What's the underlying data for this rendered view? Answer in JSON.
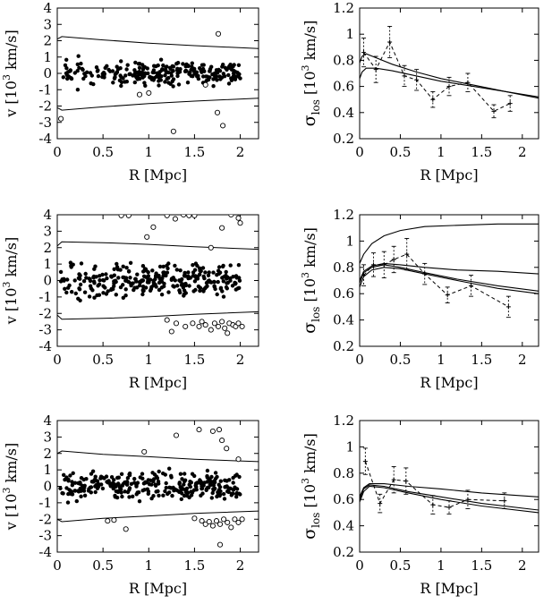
{
  "chart_data": [
    {
      "type": "scatter",
      "panel": "top-left",
      "xlabel": "R [Mpc]",
      "ylabel": "v [10³ km/s]",
      "xlim": [
        0,
        2.2
      ],
      "ylim": [
        -4,
        4
      ],
      "xticks": [
        "0",
        "0.5",
        "1",
        "1.5",
        "2"
      ],
      "yticks": [
        "-4",
        "-3",
        "-2",
        "-1",
        "0",
        "1",
        "2",
        "3",
        "4"
      ],
      "envelope": {
        "upper": [
          [
            0.0,
            2.1
          ],
          [
            0.05,
            2.25
          ],
          [
            0.5,
            2.05
          ],
          [
            1.0,
            1.85
          ],
          [
            1.5,
            1.7
          ],
          [
            2.2,
            1.52
          ]
        ],
        "lower": [
          [
            0.0,
            -2.1
          ],
          [
            0.05,
            -2.25
          ],
          [
            0.5,
            -2.05
          ],
          [
            1.0,
            -1.85
          ],
          [
            1.5,
            -1.7
          ],
          [
            2.2,
            -1.52
          ]
        ]
      },
      "members_seed": 11,
      "members_count": 260,
      "members_spread": 0.55,
      "interlopers": [
        [
          0.04,
          -2.78
        ],
        [
          0.9,
          -1.3
        ],
        [
          1.0,
          -1.2
        ],
        [
          1.27,
          -3.55
        ],
        [
          1.62,
          -0.7
        ],
        [
          1.75,
          -2.4
        ],
        [
          1.76,
          2.42
        ],
        [
          1.81,
          -3.2
        ]
      ]
    },
    {
      "type": "line",
      "panel": "top-right",
      "xlabel": "R [Mpc]",
      "ylabel": "σlos [10³ km/s]",
      "xlim": [
        0,
        2.2
      ],
      "ylim": [
        0.2,
        1.2
      ],
      "xticks": [
        "0",
        "0.5",
        "1",
        "1.5",
        "2"
      ],
      "yticks": [
        "0.2",
        "0.4",
        "0.6",
        "0.8",
        "1",
        "1.2"
      ],
      "data": {
        "x": [
          0.05,
          0.2,
          0.37,
          0.55,
          0.7,
          0.9,
          1.1,
          1.33,
          1.65,
          1.85
        ],
        "y": [
          0.86,
          0.73,
          0.94,
          0.68,
          0.65,
          0.5,
          0.6,
          0.63,
          0.41,
          0.47
        ],
        "err": [
          0.11,
          0.1,
          0.12,
          0.08,
          0.08,
          0.06,
          0.07,
          0.07,
          0.05,
          0.06
        ]
      },
      "models": [
        {
          "x": [
            0.0,
            0.03,
            0.08,
            0.2,
            0.4,
            0.7,
            1.0,
            1.4,
            1.8,
            2.2
          ],
          "y": [
            0.78,
            0.83,
            0.85,
            0.82,
            0.77,
            0.71,
            0.66,
            0.61,
            0.56,
            0.51
          ]
        },
        {
          "x": [
            0.0,
            0.03,
            0.08,
            0.2,
            0.4,
            0.7,
            1.0,
            1.4,
            1.8,
            2.2
          ],
          "y": [
            0.66,
            0.71,
            0.74,
            0.74,
            0.72,
            0.68,
            0.64,
            0.6,
            0.56,
            0.52
          ]
        }
      ]
    },
    {
      "type": "scatter",
      "panel": "middle-left",
      "xlabel": "R [Mpc]",
      "ylabel": "v [10³ km/s]",
      "xlim": [
        0,
        2.2
      ],
      "ylim": [
        -4,
        4
      ],
      "xticks": [
        "0",
        "0.5",
        "1",
        "1.5",
        "2"
      ],
      "yticks": [
        "-4",
        "-3",
        "-2",
        "-1",
        "0",
        "1",
        "2",
        "3",
        "4"
      ],
      "envelope": {
        "upper": [
          [
            0.0,
            2.1
          ],
          [
            0.05,
            2.35
          ],
          [
            0.5,
            2.3
          ],
          [
            1.0,
            2.2
          ],
          [
            1.5,
            2.05
          ],
          [
            2.2,
            1.9
          ]
        ],
        "lower": [
          [
            0.0,
            -2.1
          ],
          [
            0.05,
            -2.35
          ],
          [
            0.5,
            -2.3
          ],
          [
            1.0,
            -2.2
          ],
          [
            1.5,
            -2.05
          ],
          [
            2.2,
            -1.9
          ]
        ]
      },
      "members_seed": 23,
      "members_count": 300,
      "members_spread": 0.8,
      "interlopers": [
        [
          0.7,
          3.95
        ],
        [
          0.78,
          3.95
        ],
        [
          0.98,
          2.65
        ],
        [
          1.05,
          3.25
        ],
        [
          1.2,
          3.95
        ],
        [
          1.29,
          3.75
        ],
        [
          1.38,
          4.0
        ],
        [
          1.44,
          3.95
        ],
        [
          1.5,
          3.95
        ],
        [
          1.68,
          2.0
        ],
        [
          1.9,
          4.0
        ],
        [
          1.98,
          3.8
        ],
        [
          2.0,
          3.5
        ],
        [
          1.8,
          3.2
        ],
        [
          1.2,
          -2.4
        ],
        [
          1.3,
          -2.6
        ],
        [
          1.25,
          -3.1
        ],
        [
          1.4,
          -2.8
        ],
        [
          1.48,
          -2.6
        ],
        [
          1.55,
          -2.8
        ],
        [
          1.58,
          -2.5
        ],
        [
          1.62,
          -2.7
        ],
        [
          1.68,
          -3.0
        ],
        [
          1.72,
          -2.6
        ],
        [
          1.76,
          -2.8
        ],
        [
          1.8,
          -2.5
        ],
        [
          1.83,
          -2.9
        ],
        [
          1.86,
          -3.2
        ],
        [
          1.88,
          -2.6
        ],
        [
          1.92,
          -2.7
        ],
        [
          1.95,
          -2.8
        ],
        [
          1.98,
          -2.6
        ],
        [
          2.02,
          -2.8
        ]
      ]
    },
    {
      "type": "line",
      "panel": "middle-right",
      "xlabel": "R [Mpc]",
      "ylabel": "σlos [10³ km/s]",
      "xlim": [
        0,
        2.2
      ],
      "ylim": [
        0.2,
        1.2
      ],
      "xticks": [
        "0",
        "0.5",
        "1",
        "1.5",
        "2"
      ],
      "yticks": [
        "0.2",
        "0.4",
        "0.6",
        "0.8",
        "1",
        "1.2"
      ],
      "data": {
        "x": [
          0.05,
          0.17,
          0.3,
          0.42,
          0.58,
          0.8,
          1.08,
          1.37,
          1.83
        ],
        "y": [
          0.74,
          0.82,
          0.82,
          0.86,
          0.9,
          0.75,
          0.59,
          0.66,
          0.5
        ],
        "err": [
          0.08,
          0.09,
          0.1,
          0.1,
          0.12,
          0.08,
          0.06,
          0.08,
          0.08
        ]
      },
      "models": [
        {
          "x": [
            0.0,
            0.05,
            0.15,
            0.3,
            0.5,
            0.8,
            1.2,
            1.7,
            2.2
          ],
          "y": [
            0.83,
            0.9,
            0.98,
            1.04,
            1.08,
            1.11,
            1.12,
            1.13,
            1.13
          ]
        },
        {
          "x": [
            0.0,
            0.05,
            0.15,
            0.3,
            0.5,
            0.8,
            1.2,
            1.7,
            2.2
          ],
          "y": [
            0.7,
            0.77,
            0.81,
            0.83,
            0.82,
            0.8,
            0.78,
            0.77,
            0.75
          ]
        },
        {
          "x": [
            0.0,
            0.05,
            0.15,
            0.3,
            0.5,
            0.8,
            1.2,
            1.7,
            2.2
          ],
          "y": [
            0.68,
            0.76,
            0.8,
            0.82,
            0.8,
            0.76,
            0.71,
            0.66,
            0.62
          ]
        },
        {
          "x": [
            0.0,
            0.05,
            0.15,
            0.3,
            0.5,
            0.8,
            1.2,
            1.7,
            2.2
          ],
          "y": [
            0.65,
            0.73,
            0.78,
            0.8,
            0.79,
            0.75,
            0.7,
            0.64,
            0.6
          ]
        }
      ]
    },
    {
      "type": "scatter",
      "panel": "bottom-left",
      "xlabel": "R [Mpc]",
      "ylabel": "v [10³ km/s]",
      "xlim": [
        0,
        2.2
      ],
      "ylim": [
        -4,
        4
      ],
      "xticks": [
        "0",
        "0.5",
        "1",
        "1.5",
        "2"
      ],
      "yticks": [
        "-4",
        "-3",
        "-2",
        "-1",
        "0",
        "1",
        "2",
        "3",
        "4"
      ],
      "envelope": {
        "upper": [
          [
            0.0,
            2.0
          ],
          [
            0.05,
            2.15
          ],
          [
            0.5,
            1.95
          ],
          [
            1.0,
            1.8
          ],
          [
            1.5,
            1.65
          ],
          [
            2.2,
            1.5
          ]
        ],
        "lower": [
          [
            0.0,
            -2.0
          ],
          [
            0.05,
            -2.15
          ],
          [
            0.5,
            -1.95
          ],
          [
            1.0,
            -1.8
          ],
          [
            1.5,
            -1.65
          ],
          [
            2.2,
            -1.5
          ]
        ]
      },
      "members_seed": 37,
      "members_count": 300,
      "members_spread": 0.65,
      "interlopers": [
        [
          0.55,
          -2.1
        ],
        [
          0.62,
          -2.05
        ],
        [
          0.75,
          -2.6
        ],
        [
          0.95,
          2.1
        ],
        [
          1.3,
          3.1
        ],
        [
          1.55,
          3.45
        ],
        [
          1.7,
          3.35
        ],
        [
          1.77,
          3.45
        ],
        [
          1.8,
          2.8
        ],
        [
          1.85,
          2.3
        ],
        [
          1.78,
          -3.55
        ],
        [
          1.98,
          1.65
        ],
        [
          1.5,
          -1.95
        ],
        [
          1.58,
          -2.1
        ],
        [
          1.62,
          -2.3
        ],
        [
          1.66,
          -2.15
        ],
        [
          1.7,
          -2.4
        ],
        [
          1.74,
          -2.1
        ],
        [
          1.78,
          -2.3
        ],
        [
          1.82,
          -2.0
        ],
        [
          1.86,
          -2.2
        ],
        [
          1.9,
          -2.5
        ],
        [
          1.94,
          -2.0
        ],
        [
          1.98,
          -2.2
        ],
        [
          2.02,
          -2.0
        ]
      ]
    },
    {
      "type": "line",
      "panel": "bottom-right",
      "xlabel": "R [Mpc]",
      "ylabel": "σlos [10³ km/s]",
      "xlim": [
        0,
        2.2
      ],
      "ylim": [
        0.2,
        1.2
      ],
      "xticks": [
        "0",
        "0.5",
        "1",
        "1.5",
        "2"
      ],
      "yticks": [
        "0.2",
        "0.4",
        "0.6",
        "0.8",
        "1",
        "1.2"
      ],
      "data": {
        "x": [
          0.07,
          0.25,
          0.42,
          0.57,
          0.9,
          1.1,
          1.33,
          1.78
        ],
        "y": [
          0.89,
          0.57,
          0.75,
          0.74,
          0.56,
          0.54,
          0.6,
          0.59
        ],
        "err": [
          0.1,
          0.07,
          0.1,
          0.1,
          0.07,
          0.05,
          0.07,
          0.06
        ]
      },
      "models": [
        {
          "x": [
            0.0,
            0.05,
            0.12,
            0.3,
            0.6,
            1.0,
            1.5,
            2.2
          ],
          "y": [
            0.62,
            0.69,
            0.72,
            0.72,
            0.7,
            0.68,
            0.65,
            0.62
          ]
        },
        {
          "x": [
            0.0,
            0.05,
            0.12,
            0.3,
            0.6,
            1.0,
            1.5,
            2.2
          ],
          "y": [
            0.6,
            0.68,
            0.71,
            0.7,
            0.66,
            0.62,
            0.57,
            0.52
          ]
        },
        {
          "x": [
            0.0,
            0.05,
            0.12,
            0.3,
            0.6,
            1.0,
            1.5,
            2.2
          ],
          "y": [
            0.58,
            0.66,
            0.7,
            0.69,
            0.65,
            0.6,
            0.55,
            0.5
          ]
        }
      ]
    }
  ]
}
